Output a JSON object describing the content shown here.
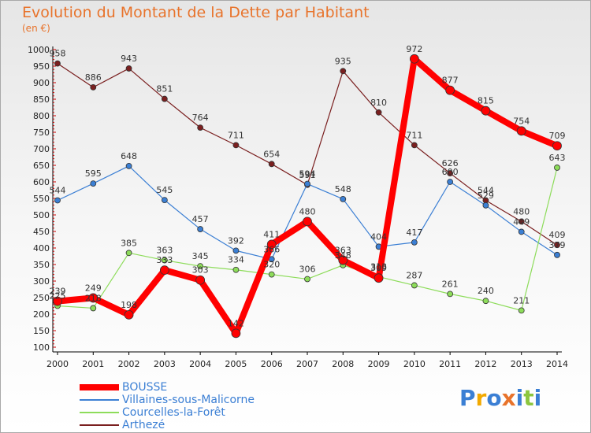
{
  "title": "Evolution du Montant de la Dette par Habitant",
  "subtitle": "(en €)",
  "logo": {
    "letters": [
      {
        "ch": "P",
        "color": "#3b7fd4"
      },
      {
        "ch": "r",
        "color": "#f2a900"
      },
      {
        "ch": "o",
        "color": "#3b7fd4"
      },
      {
        "ch": "x",
        "color": "#e8732b"
      },
      {
        "ch": "i",
        "color": "#3b7fd4"
      },
      {
        "ch": "t",
        "color": "#8cc63f"
      },
      {
        "ch": "i",
        "color": "#3b7fd4"
      }
    ]
  },
  "chart_data": {
    "type": "line",
    "x": [
      "2000",
      "2001",
      "2002",
      "2003",
      "2004",
      "2005",
      "2006",
      "2007",
      "2008",
      "2009",
      "2010",
      "2011",
      "2012",
      "2013",
      "2014"
    ],
    "ylim": [
      100,
      1000
    ],
    "yticks": [
      100,
      150,
      200,
      250,
      300,
      350,
      400,
      450,
      500,
      550,
      600,
      650,
      700,
      750,
      800,
      850,
      900,
      950,
      1000
    ],
    "grid": false,
    "legend_position": "bottom-left",
    "series": [
      {
        "name": "BOUSSE",
        "color": "#ff0000",
        "width": 8,
        "values": [
          239,
          249,
          198,
          333,
          303,
          142,
          411,
          480,
          363,
          309,
          972,
          877,
          815,
          754,
          709
        ]
      },
      {
        "name": "Villaines-sous-Malicorne",
        "color": "#3b7fd4",
        "width": 1.2,
        "values": [
          544,
          595,
          648,
          545,
          457,
          392,
          366,
          594,
          548,
          404,
          417,
          600,
          529,
          449,
          379
        ]
      },
      {
        "name": "Courcelles-la-Forêt",
        "color": "#8ddc5a",
        "width": 1.2,
        "values": [
          225,
          218,
          385,
          363,
          345,
          334,
          320,
          306,
          348,
          313,
          287,
          261,
          240,
          211,
          643
        ]
      },
      {
        "name": "Arthezé",
        "color": "#7a1f1f",
        "width": 1.2,
        "values": [
          958,
          886,
          943,
          851,
          764,
          711,
          654,
          591,
          935,
          810,
          711,
          626,
          544,
          480,
          409
        ]
      }
    ]
  }
}
